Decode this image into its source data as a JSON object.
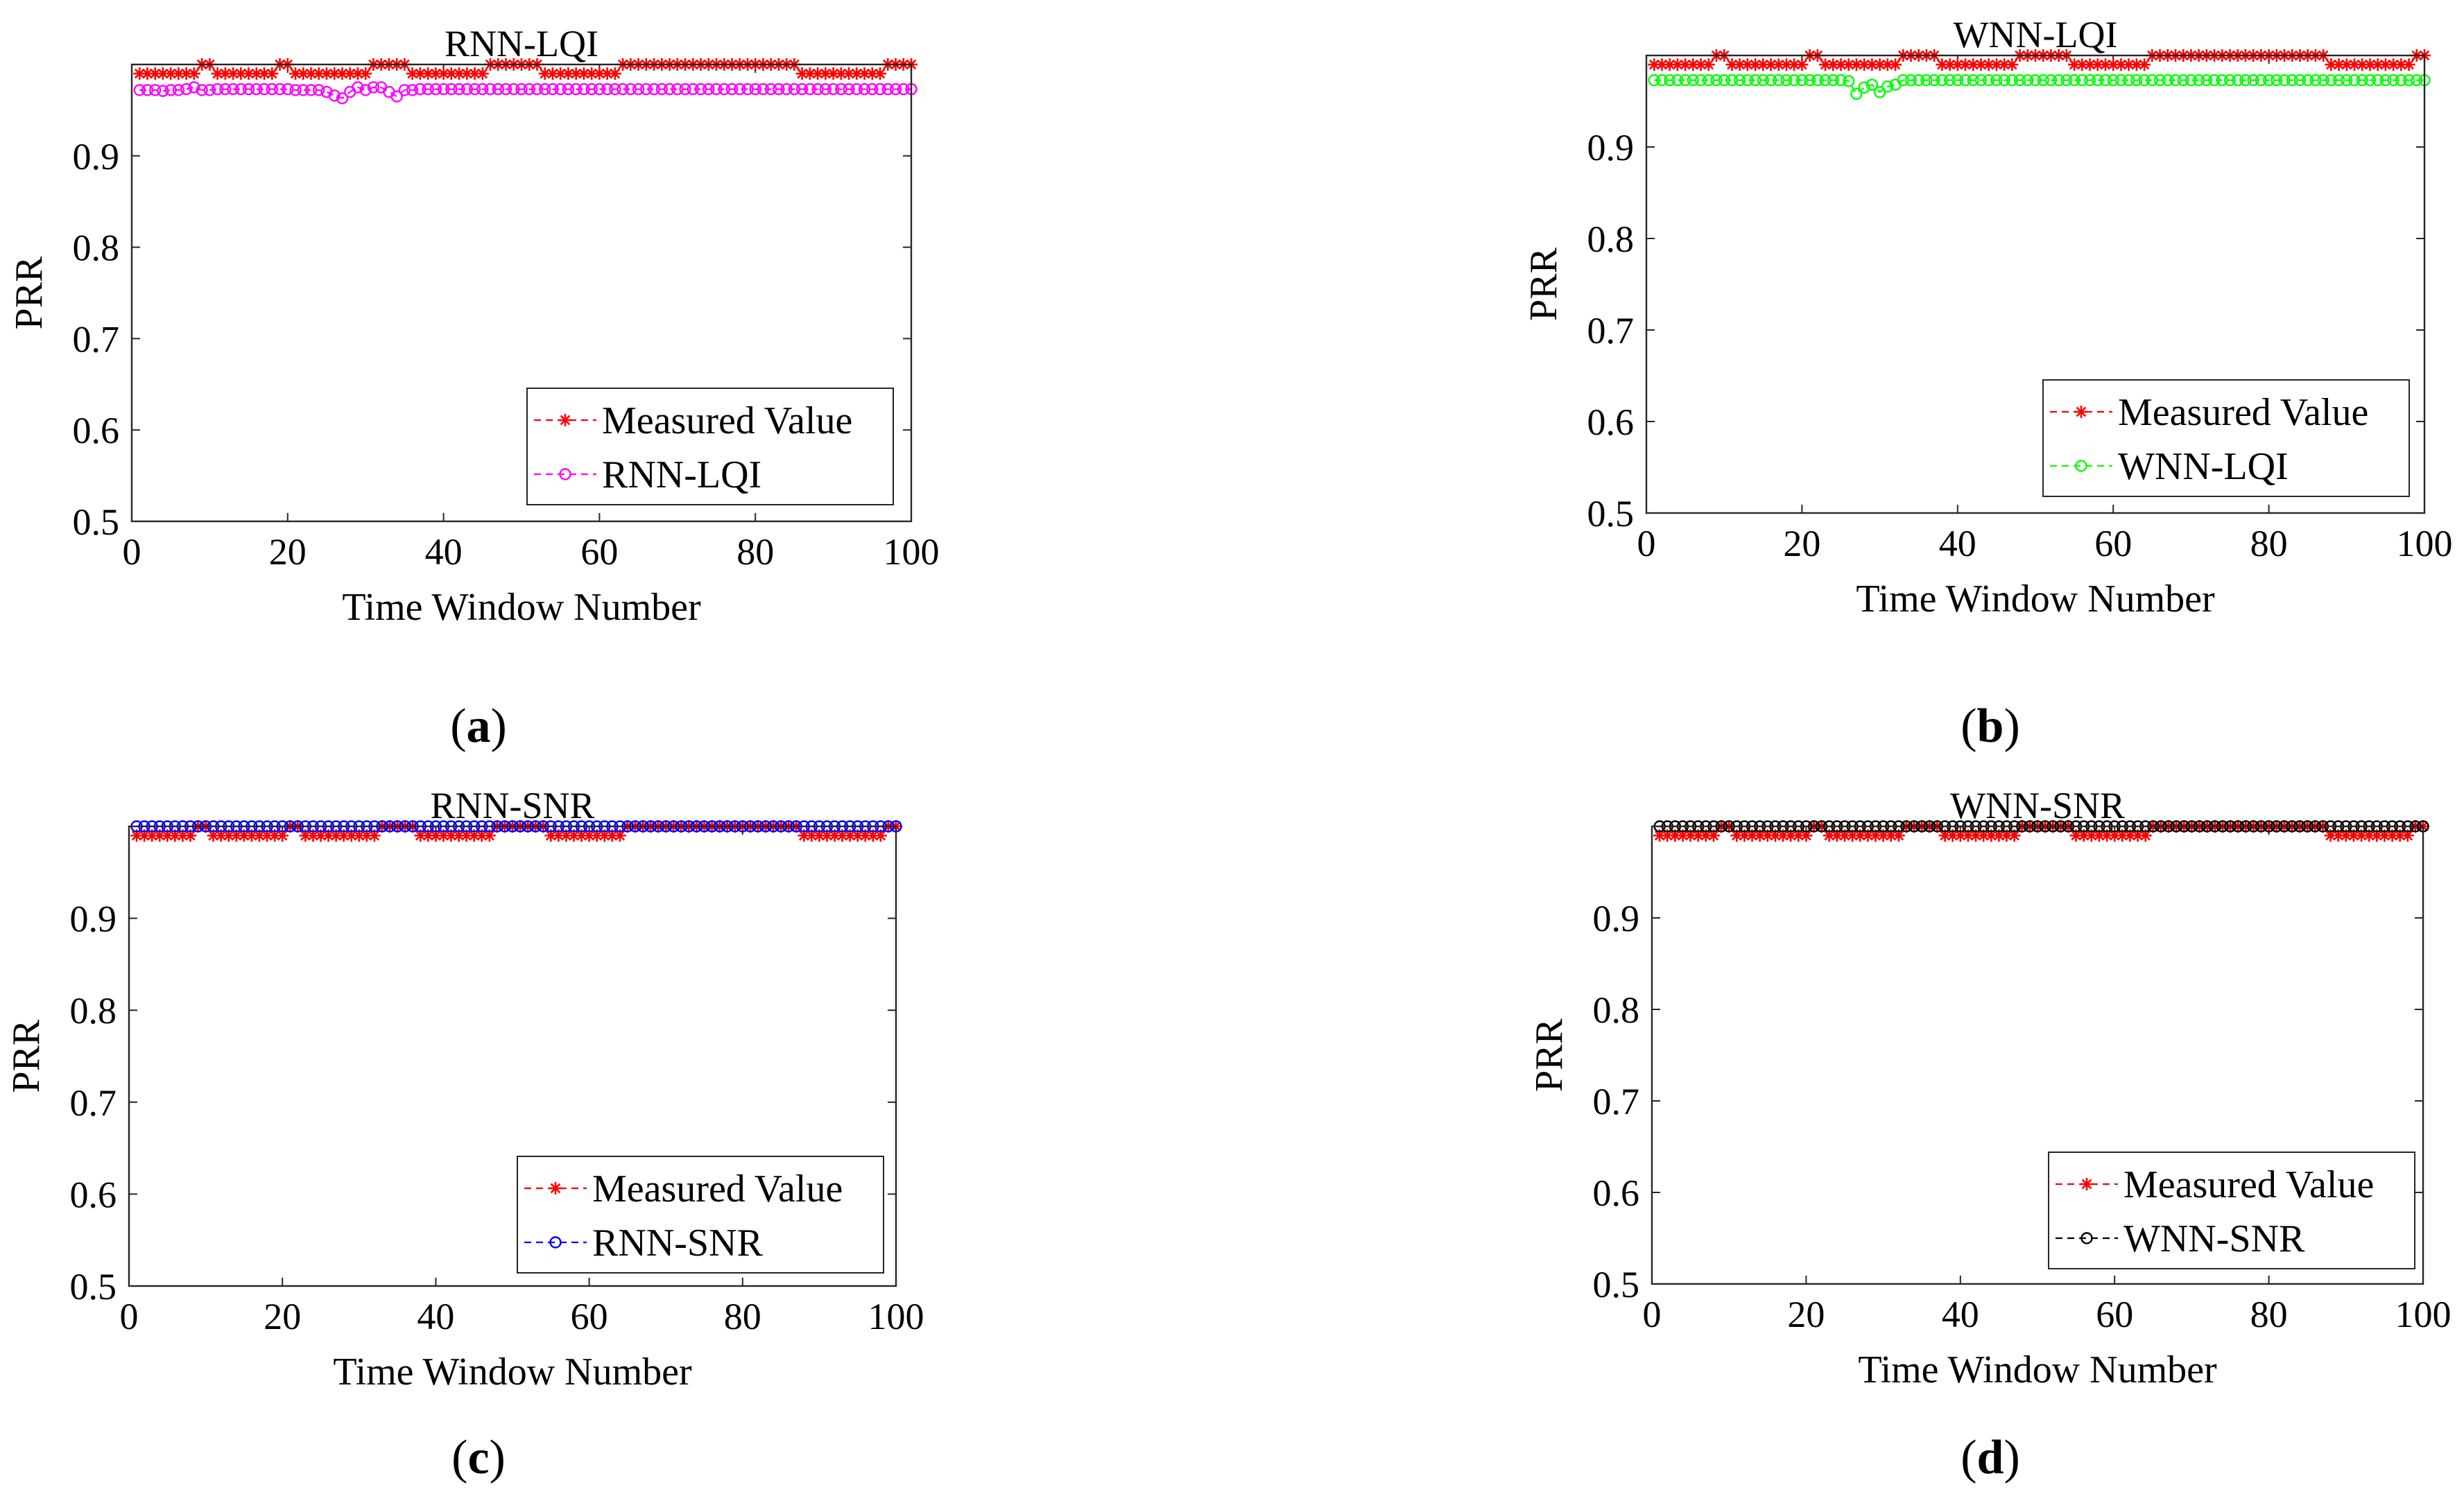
{
  "figure": {
    "captions": [
      "a",
      "b",
      "c",
      "d"
    ]
  },
  "chart_data": [
    {
      "id": "a",
      "type": "line",
      "title": "RNN-LQI",
      "xlabel": "Time Window Number",
      "ylabel": "PRR",
      "xlim": [
        0,
        100
      ],
      "ylim": [
        0.5,
        1.0
      ],
      "xticks": [
        "0",
        "20",
        "40",
        "60",
        "80",
        "100"
      ],
      "yticks": [
        "0.5",
        "0.6",
        "0.7",
        "0.8",
        "0.9"
      ],
      "legend_position": "bottom-right",
      "series": [
        {
          "name": "Measured Value",
          "color": "#ff0000",
          "marker": "asterisk",
          "x_start": 1,
          "values_compact": [
            [
              8,
              0.99
            ],
            [
              2,
              1.0
            ],
            [
              8,
              0.99
            ],
            [
              2,
              1.0
            ],
            [
              10,
              0.99
            ],
            [
              5,
              1.0
            ],
            [
              10,
              0.99
            ],
            [
              7,
              1.0
            ],
            [
              10,
              0.99
            ],
            [
              23,
              1.0
            ],
            [
              11,
              0.99
            ],
            [
              4,
              1.0
            ]
          ]
        },
        {
          "name": "RNN-LQI",
          "color": "#ff00ff",
          "marker": "circle",
          "x_start": 1,
          "values_compact": [
            [
              3,
              0.972
            ],
            [
              1,
              0.971
            ],
            [
              2,
              0.972
            ],
            [
              1,
              0.973
            ],
            [
              1,
              0.975
            ],
            [
              2,
              0.972
            ],
            [
              10,
              0.973
            ],
            [
              4,
              0.972
            ],
            [
              1,
              0.97
            ],
            [
              1,
              0.966
            ],
            [
              1,
              0.963
            ],
            [
              1,
              0.97
            ],
            [
              1,
              0.975
            ],
            [
              1,
              0.972
            ],
            [
              2,
              0.975
            ],
            [
              1,
              0.97
            ],
            [
              1,
              0.965
            ],
            [
              2,
              0.972
            ],
            [
              64,
              0.973
            ]
          ]
        }
      ]
    },
    {
      "id": "b",
      "type": "line",
      "title": "WNN-LQI",
      "xlabel": "Time Window Number",
      "ylabel": "PRR",
      "xlim": [
        0,
        100
      ],
      "ylim": [
        0.5,
        1.0
      ],
      "xticks": [
        "0",
        "20",
        "40",
        "60",
        "80",
        "100"
      ],
      "yticks": [
        "0.5",
        "0.6",
        "0.7",
        "0.8",
        "0.9"
      ],
      "legend_position": "bottom-right",
      "series": [
        {
          "name": "Measured Value",
          "color": "#ff0000",
          "marker": "asterisk",
          "x_start": 1,
          "values_compact": [
            [
              8,
              0.99
            ],
            [
              2,
              1.0
            ],
            [
              10,
              0.99
            ],
            [
              2,
              1.0
            ],
            [
              10,
              0.99
            ],
            [
              5,
              1.0
            ],
            [
              10,
              0.99
            ],
            [
              7,
              1.0
            ],
            [
              10,
              0.99
            ],
            [
              23,
              1.0
            ],
            [
              11,
              0.99
            ],
            [
              2,
              1.0
            ]
          ]
        },
        {
          "name": "WNN-LQI",
          "color": "#00ff00",
          "marker": "circle",
          "x_start": 1,
          "values_compact": [
            [
              25,
              0.973
            ],
            [
              1,
              0.972
            ],
            [
              1,
              0.958
            ],
            [
              1,
              0.965
            ],
            [
              1,
              0.968
            ],
            [
              1,
              0.96
            ],
            [
              1,
              0.966
            ],
            [
              1,
              0.968
            ],
            [
              68,
              0.973
            ]
          ]
        }
      ]
    },
    {
      "id": "c",
      "type": "line",
      "title": "RNN-SNR",
      "xlabel": "Time Window Number",
      "ylabel": "PRR",
      "xlim": [
        0,
        100
      ],
      "ylim": [
        0.5,
        1.0
      ],
      "xticks": [
        "0",
        "20",
        "40",
        "60",
        "80",
        "100"
      ],
      "yticks": [
        "0.5",
        "0.6",
        "0.7",
        "0.8",
        "0.9"
      ],
      "legend_position": "bottom-right",
      "series": [
        {
          "name": "Measured Value",
          "color": "#ff0000",
          "marker": "asterisk",
          "x_start": 1,
          "values_compact": [
            [
              8,
              0.99
            ],
            [
              2,
              1.0
            ],
            [
              10,
              0.99
            ],
            [
              2,
              1.0
            ],
            [
              10,
              0.99
            ],
            [
              5,
              1.0
            ],
            [
              10,
              0.99
            ],
            [
              7,
              1.0
            ],
            [
              10,
              0.99
            ],
            [
              23,
              1.0
            ],
            [
              11,
              0.99
            ],
            [
              2,
              1.0
            ]
          ]
        },
        {
          "name": "RNN-SNR",
          "color": "#0000ff",
          "marker": "circle",
          "x_start": 1,
          "values_compact": [
            [
              100,
              1.0
            ]
          ]
        }
      ]
    },
    {
      "id": "d",
      "type": "line",
      "title": "WNN-SNR",
      "xlabel": "Time Window Number",
      "ylabel": "PRR",
      "xlim": [
        0,
        100
      ],
      "ylim": [
        0.5,
        1.0
      ],
      "xticks": [
        "0",
        "20",
        "40",
        "60",
        "80",
        "100"
      ],
      "yticks": [
        "0.5",
        "0.6",
        "0.7",
        "0.8",
        "0.9"
      ],
      "legend_position": "bottom-right",
      "series": [
        {
          "name": "Measured Value",
          "color": "#ff0000",
          "marker": "asterisk",
          "x_start": 1,
          "values_compact": [
            [
              8,
              0.99
            ],
            [
              2,
              1.0
            ],
            [
              10,
              0.99
            ],
            [
              2,
              1.0
            ],
            [
              10,
              0.99
            ],
            [
              5,
              1.0
            ],
            [
              10,
              0.99
            ],
            [
              7,
              1.0
            ],
            [
              10,
              0.99
            ],
            [
              23,
              1.0
            ],
            [
              11,
              0.99
            ],
            [
              2,
              1.0
            ]
          ]
        },
        {
          "name": "WNN-SNR",
          "color": "#000000",
          "marker": "circle",
          "x_start": 1,
          "values_compact": [
            [
              100,
              1.0
            ]
          ]
        }
      ]
    }
  ]
}
